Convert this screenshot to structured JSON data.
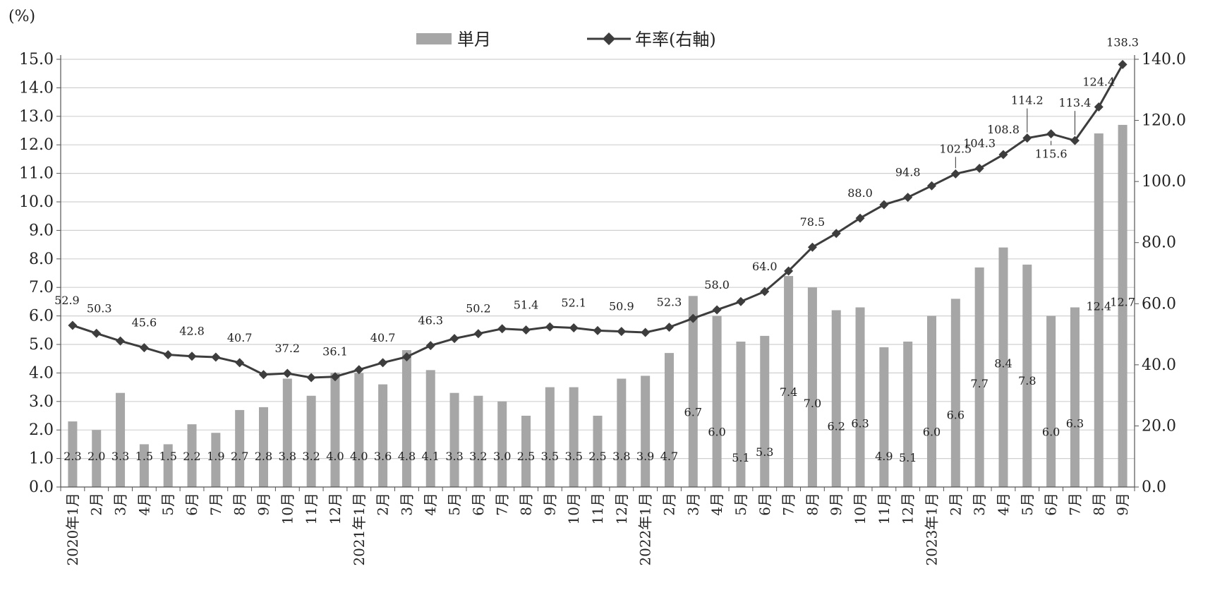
{
  "chart_data": {
    "type": "bar",
    "unit_label": "(%)",
    "categories": [
      "2020年1月",
      "2月",
      "3月",
      "4月",
      "5月",
      "6月",
      "7月",
      "8月",
      "9月",
      "10月",
      "11月",
      "12月",
      "2021年1月",
      "2月",
      "3月",
      "4月",
      "5月",
      "6月",
      "7月",
      "8月",
      "9月",
      "10月",
      "11月",
      "12月",
      "2022年1月",
      "2月",
      "3月",
      "4月",
      "5月",
      "6月",
      "7月",
      "8月",
      "9月",
      "10月",
      "11月",
      "12月",
      "2023年1月",
      "2月",
      "3月",
      "4月",
      "5月",
      "6月",
      "7月",
      "8月",
      "9月"
    ],
    "series": [
      {
        "name": "単月",
        "type": "bar",
        "axis": "left",
        "color": "#a6a6a6",
        "values": [
          2.3,
          2.0,
          3.3,
          1.5,
          1.5,
          2.2,
          1.9,
          2.7,
          2.8,
          3.8,
          3.2,
          4.0,
          4.0,
          3.6,
          4.8,
          4.1,
          3.3,
          3.2,
          3.0,
          2.5,
          3.5,
          3.5,
          2.5,
          3.8,
          3.9,
          4.7,
          6.7,
          6.0,
          5.1,
          5.3,
          7.4,
          7.0,
          6.2,
          6.3,
          4.9,
          5.1,
          6.0,
          6.6,
          7.7,
          8.4,
          7.8,
          6.0,
          6.3,
          12.4,
          12.7
        ],
        "value_labels": [
          "2.3",
          "2.0",
          "3.3",
          "1.5",
          "1.5",
          "2.2",
          "1.9",
          "2.7",
          "2.8",
          "3.8",
          "3.2",
          "4.0",
          "4.0",
          "3.6",
          "4.8",
          "4.1",
          "3.3",
          "3.2",
          "3.0",
          "2.5",
          "3.5",
          "3.5",
          "2.5",
          "3.8",
          "3.9",
          "4.7",
          "6.7",
          "6.0",
          "5.1",
          "5.3",
          "7.4",
          "7.0",
          "6.2",
          "6.3",
          "4.9",
          "5.1",
          "6.0",
          "6.6",
          "7.7",
          "8.4",
          "7.8",
          "6.0",
          "6.3",
          "12.4",
          "12.7"
        ]
      },
      {
        "name": "年率(右軸)",
        "type": "line",
        "axis": "right",
        "color": "#3d3d3d",
        "marker": "diamond",
        "values": [
          52.9,
          50.3,
          47.8,
          45.6,
          43.3,
          42.8,
          42.5,
          40.7,
          36.8,
          37.2,
          35.8,
          36.1,
          38.4,
          40.7,
          42.6,
          46.3,
          48.6,
          50.2,
          51.8,
          51.4,
          52.4,
          52.1,
          51.2,
          50.9,
          50.6,
          52.3,
          55.2,
          58.0,
          60.7,
          64.0,
          70.7,
          78.5,
          83.0,
          88.0,
          92.4,
          94.8,
          98.6,
          102.5,
          104.3,
          108.8,
          114.2,
          115.6,
          113.4,
          124.4,
          138.3
        ],
        "value_labels": [
          {
            "i": 0,
            "text": "52.9"
          },
          {
            "i": 1,
            "text": "50.3"
          },
          {
            "i": 3,
            "text": "45.6"
          },
          {
            "i": 5,
            "text": "42.8"
          },
          {
            "i": 7,
            "text": "40.7"
          },
          {
            "i": 9,
            "text": "37.2"
          },
          {
            "i": 11,
            "text": "36.1"
          },
          {
            "i": 13,
            "text": "40.7"
          },
          {
            "i": 15,
            "text": "46.3"
          },
          {
            "i": 17,
            "text": "50.2"
          },
          {
            "i": 19,
            "text": "51.4"
          },
          {
            "i": 21,
            "text": "52.1"
          },
          {
            "i": 23,
            "text": "50.9"
          },
          {
            "i": 25,
            "text": "52.3"
          },
          {
            "i": 27,
            "text": "58.0"
          },
          {
            "i": 29,
            "text": "64.0"
          },
          {
            "i": 31,
            "text": "78.5"
          },
          {
            "i": 33,
            "text": "88.0"
          },
          {
            "i": 35,
            "text": "94.8"
          },
          {
            "i": 37,
            "text": "102.5"
          },
          {
            "i": 38,
            "text": "104.3"
          },
          {
            "i": 39,
            "text": "108.8"
          },
          {
            "i": 40,
            "text": "114.2"
          },
          {
            "i": 41,
            "text": "115.6"
          },
          {
            "i": 42,
            "text": "113.4"
          },
          {
            "i": 43,
            "text": "124.4"
          },
          {
            "i": 44,
            "text": "138.3"
          }
        ]
      }
    ],
    "y_left": {
      "min": 0,
      "max": 15,
      "step": 1,
      "ticks": [
        "0.0",
        "1.0",
        "2.0",
        "3.0",
        "4.0",
        "5.0",
        "6.0",
        "7.0",
        "8.0",
        "9.0",
        "10.0",
        "11.0",
        "12.0",
        "13.0",
        "14.0",
        "15.0"
      ]
    },
    "y_right": {
      "min": 0,
      "max": 140,
      "step": 20,
      "ticks": [
        "0.0",
        "20.0",
        "40.0",
        "60.0",
        "80.0",
        "100.0",
        "120.0",
        "140.0"
      ]
    },
    "grid": "horizontal",
    "legend_position": "top-center"
  }
}
